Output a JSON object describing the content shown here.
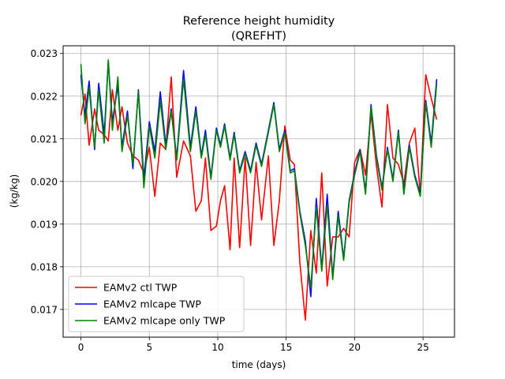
{
  "chart_data": {
    "type": "line",
    "title_line1": "Reference height humidity",
    "title_line2": "(QREFHT)",
    "xlabel": "time (days)",
    "ylabel": "(kg/kg)",
    "xlim": [
      -1.3,
      27.3
    ],
    "ylim": [
      0.01635,
      0.02318
    ],
    "xticks": [
      0,
      5,
      10,
      15,
      20,
      25
    ],
    "xtick_labels": [
      "0",
      "5",
      "10",
      "15",
      "20",
      "25"
    ],
    "yticks": [
      0.017,
      0.018,
      0.019,
      0.02,
      0.021,
      0.022,
      0.023
    ],
    "ytick_labels": [
      "0.017",
      "0.018",
      "0.019",
      "0.020",
      "0.021",
      "0.022",
      "0.023"
    ],
    "grid": true,
    "legend_position": "lower-left",
    "series": [
      {
        "name": "EAMv2 ctl TWP",
        "color": "#ff0000",
        "points": [
          [
            0.0,
            0.02155
          ],
          [
            0.3,
            0.02205
          ],
          [
            0.6,
            0.02085
          ],
          [
            1.0,
            0.0217
          ],
          [
            1.3,
            0.0212
          ],
          [
            1.7,
            0.0211
          ],
          [
            2.0,
            0.02095
          ],
          [
            2.3,
            0.02215
          ],
          [
            2.7,
            0.0212
          ],
          [
            3.0,
            0.02175
          ],
          [
            3.4,
            0.0209
          ],
          [
            3.8,
            0.0206
          ],
          [
            4.2,
            0.0205
          ],
          [
            4.6,
            0.0202
          ],
          [
            5.0,
            0.0208
          ],
          [
            5.4,
            0.01965
          ],
          [
            5.8,
            0.0209
          ],
          [
            6.2,
            0.02075
          ],
          [
            6.6,
            0.02245
          ],
          [
            7.0,
            0.0201
          ],
          [
            7.5,
            0.02095
          ],
          [
            8.0,
            0.0206
          ],
          [
            8.4,
            0.0193
          ],
          [
            8.8,
            0.01955
          ],
          [
            9.1,
            0.02055
          ],
          [
            9.5,
            0.01885
          ],
          [
            9.9,
            0.01895
          ],
          [
            10.2,
            0.01955
          ],
          [
            10.5,
            0.0199
          ],
          [
            10.9,
            0.0184
          ],
          [
            11.2,
            0.02055
          ],
          [
            11.6,
            0.01845
          ],
          [
            12.0,
            0.02055
          ],
          [
            12.4,
            0.0185
          ],
          [
            12.8,
            0.02045
          ],
          [
            13.2,
            0.0191
          ],
          [
            13.7,
            0.0206
          ],
          [
            14.1,
            0.0185
          ],
          [
            14.5,
            0.01955
          ],
          [
            14.9,
            0.0213
          ],
          [
            15.3,
            0.0205
          ],
          [
            15.6,
            0.0204
          ],
          [
            16.0,
            0.0181
          ],
          [
            16.4,
            0.01675
          ],
          [
            16.8,
            0.01885
          ],
          [
            17.2,
            0.01785
          ],
          [
            17.6,
            0.0202
          ],
          [
            18.0,
            0.01755
          ],
          [
            18.4,
            0.0187
          ],
          [
            18.8,
            0.0187
          ],
          [
            19.2,
            0.0189
          ],
          [
            19.6,
            0.0187
          ],
          [
            20.0,
            0.02045
          ],
          [
            20.4,
            0.02075
          ],
          [
            20.8,
            0.02015
          ],
          [
            21.2,
            0.0216
          ],
          [
            21.6,
            0.02035
          ],
          [
            22.0,
            0.0194
          ],
          [
            22.4,
            0.0218
          ],
          [
            22.8,
            0.02055
          ],
          [
            23.2,
            0.0204
          ],
          [
            23.6,
            0.01995
          ],
          [
            24.0,
            0.0209
          ],
          [
            24.4,
            0.02125
          ],
          [
            24.8,
            0.0197
          ],
          [
            25.2,
            0.0225
          ],
          [
            25.6,
            0.02195
          ],
          [
            26.0,
            0.02145
          ]
        ]
      },
      {
        "name": "EAMv2 mlcape TWP",
        "color": "#0000ff",
        "points": [
          [
            0.0,
            0.0225
          ],
          [
            0.3,
            0.02155
          ],
          [
            0.6,
            0.02235
          ],
          [
            1.0,
            0.02075
          ],
          [
            1.3,
            0.0223
          ],
          [
            1.7,
            0.0211
          ],
          [
            2.0,
            0.0228
          ],
          [
            2.3,
            0.0214
          ],
          [
            2.7,
            0.02225
          ],
          [
            3.0,
            0.0208
          ],
          [
            3.4,
            0.02165
          ],
          [
            3.8,
            0.0203
          ],
          [
            4.2,
            0.02215
          ],
          [
            4.6,
            0.02005
          ],
          [
            5.0,
            0.0214
          ],
          [
            5.4,
            0.0207
          ],
          [
            5.8,
            0.0221
          ],
          [
            6.2,
            0.02085
          ],
          [
            6.6,
            0.0217
          ],
          [
            7.0,
            0.02055
          ],
          [
            7.5,
            0.0226
          ],
          [
            8.0,
            0.0208
          ],
          [
            8.4,
            0.02175
          ],
          [
            8.8,
            0.0206
          ],
          [
            9.1,
            0.0212
          ],
          [
            9.5,
            0.0201
          ],
          [
            9.9,
            0.02125
          ],
          [
            10.2,
            0.02085
          ],
          [
            10.5,
            0.02135
          ],
          [
            10.9,
            0.02055
          ],
          [
            11.2,
            0.02115
          ],
          [
            11.6,
            0.02025
          ],
          [
            12.0,
            0.0207
          ],
          [
            12.4,
            0.02025
          ],
          [
            12.8,
            0.0209
          ],
          [
            13.2,
            0.0204
          ],
          [
            13.7,
            0.0212
          ],
          [
            14.1,
            0.02185
          ],
          [
            14.5,
            0.02075
          ],
          [
            14.9,
            0.0212
          ],
          [
            15.3,
            0.02025
          ],
          [
            15.6,
            0.0203
          ],
          [
            16.0,
            0.0193
          ],
          [
            16.4,
            0.0186
          ],
          [
            16.8,
            0.0173
          ],
          [
            17.2,
            0.0196
          ],
          [
            17.6,
            0.01795
          ],
          [
            18.0,
            0.0197
          ],
          [
            18.4,
            0.01775
          ],
          [
            18.8,
            0.0193
          ],
          [
            19.2,
            0.0182
          ],
          [
            19.6,
            0.01955
          ],
          [
            20.0,
            0.0202
          ],
          [
            20.4,
            0.02075
          ],
          [
            20.8,
            0.01975
          ],
          [
            21.2,
            0.0218
          ],
          [
            21.6,
            0.0206
          ],
          [
            22.0,
            0.01985
          ],
          [
            22.4,
            0.0208
          ],
          [
            22.8,
            0.02005
          ],
          [
            23.2,
            0.0212
          ],
          [
            23.6,
            0.01975
          ],
          [
            24.0,
            0.02085
          ],
          [
            24.4,
            0.02015
          ],
          [
            24.8,
            0.0197
          ],
          [
            25.2,
            0.0219
          ],
          [
            25.6,
            0.0209
          ],
          [
            26.0,
            0.0224
          ]
        ]
      },
      {
        "name": "EAMv2 mlcape only TWP",
        "color": "#008000",
        "points": [
          [
            0.0,
            0.02275
          ],
          [
            0.3,
            0.02135
          ],
          [
            0.6,
            0.0222
          ],
          [
            1.0,
            0.0208
          ],
          [
            1.3,
            0.02215
          ],
          [
            1.7,
            0.0209
          ],
          [
            2.0,
            0.02285
          ],
          [
            2.3,
            0.0212
          ],
          [
            2.7,
            0.02245
          ],
          [
            3.0,
            0.0207
          ],
          [
            3.4,
            0.02155
          ],
          [
            3.8,
            0.0204
          ],
          [
            4.2,
            0.0221
          ],
          [
            4.6,
            0.01985
          ],
          [
            5.0,
            0.0213
          ],
          [
            5.4,
            0.02055
          ],
          [
            5.8,
            0.0219
          ],
          [
            6.2,
            0.02075
          ],
          [
            6.6,
            0.02165
          ],
          [
            7.0,
            0.0205
          ],
          [
            7.5,
            0.0224
          ],
          [
            8.0,
            0.0207
          ],
          [
            8.4,
            0.02165
          ],
          [
            8.8,
            0.02055
          ],
          [
            9.1,
            0.0211
          ],
          [
            9.5,
            0.02005
          ],
          [
            9.9,
            0.0212
          ],
          [
            10.2,
            0.0208
          ],
          [
            10.5,
            0.0213
          ],
          [
            10.9,
            0.0205
          ],
          [
            11.2,
            0.0211
          ],
          [
            11.6,
            0.0202
          ],
          [
            12.0,
            0.02065
          ],
          [
            12.4,
            0.0202
          ],
          [
            12.8,
            0.02085
          ],
          [
            13.2,
            0.02035
          ],
          [
            13.7,
            0.02115
          ],
          [
            14.1,
            0.0218
          ],
          [
            14.5,
            0.0207
          ],
          [
            14.9,
            0.02115
          ],
          [
            15.3,
            0.0202
          ],
          [
            15.6,
            0.02025
          ],
          [
            16.0,
            0.01925
          ],
          [
            16.4,
            0.0185
          ],
          [
            16.8,
            0.0175
          ],
          [
            17.2,
            0.0194
          ],
          [
            17.6,
            0.0179
          ],
          [
            18.0,
            0.01945
          ],
          [
            18.4,
            0.0177
          ],
          [
            18.8,
            0.0192
          ],
          [
            19.2,
            0.01815
          ],
          [
            19.6,
            0.0195
          ],
          [
            20.0,
            0.02015
          ],
          [
            20.4,
            0.0207
          ],
          [
            20.8,
            0.0197
          ],
          [
            21.2,
            0.02175
          ],
          [
            21.6,
            0.02055
          ],
          [
            22.0,
            0.0198
          ],
          [
            22.4,
            0.02075
          ],
          [
            22.8,
            0.02
          ],
          [
            23.2,
            0.02115
          ],
          [
            23.6,
            0.0197
          ],
          [
            24.0,
            0.0208
          ],
          [
            24.4,
            0.0201
          ],
          [
            24.8,
            0.01965
          ],
          [
            25.2,
            0.02185
          ],
          [
            25.6,
            0.0208
          ],
          [
            26.0,
            0.0223
          ]
        ]
      }
    ]
  }
}
